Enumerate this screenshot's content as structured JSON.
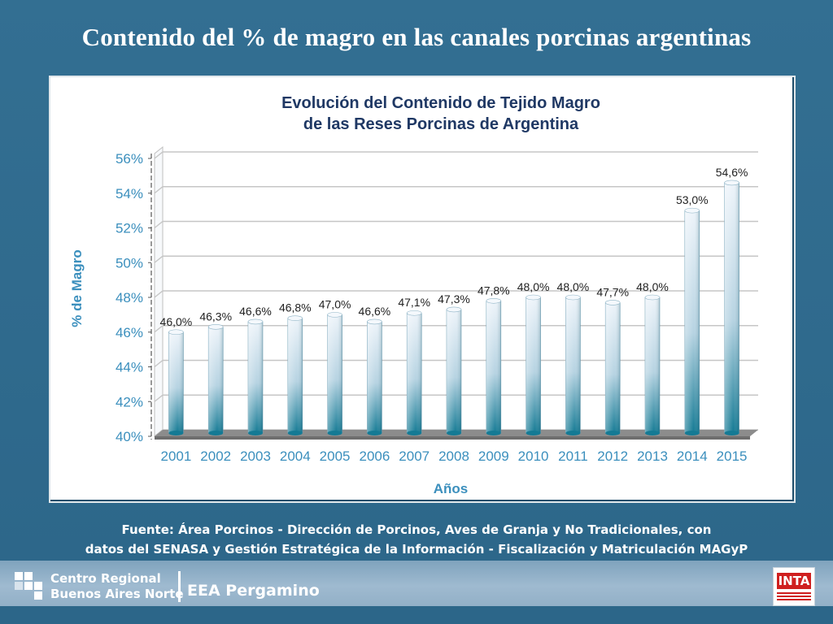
{
  "slide": {
    "title": "Contenido del % de magro en las canales porcinas argentinas",
    "source_line1": "Fuente: Área Porcinos - Dirección de Porcinos, Aves de Granja y No Tradicionales, con",
    "source_line2": "datos del SENASA y Gestión Estratégica de la Información - Fiscalización y Matriculación MAGyP"
  },
  "footer": {
    "centro_line1": "Centro Regional",
    "centro_line2": "Buenos Aires Norte",
    "eea": "EEA Pergamino",
    "inta": "INTA"
  },
  "colors": {
    "background": "#2f6b8f",
    "title_text": "#1f3864",
    "axis_text": "#3b8fbd",
    "bar_top": "#eef4fa",
    "bar_bottom": "#147a94"
  },
  "chart_data": {
    "type": "bar",
    "title_line1": "Evolución del Contenido de Tejido Magro",
    "title_line2": "de las Reses Porcinas de Argentina",
    "xlabel": "Años",
    "ylabel": "% de Magro",
    "ylim": [
      40,
      56
    ],
    "yticks": [
      40,
      42,
      44,
      46,
      48,
      50,
      52,
      54,
      56
    ],
    "ytick_labels": [
      "40%",
      "42%",
      "44%",
      "46%",
      "48%",
      "50%",
      "52%",
      "54%",
      "56%"
    ],
    "categories": [
      "2001",
      "2002",
      "2003",
      "2004",
      "2005",
      "2006",
      "2007",
      "2008",
      "2009",
      "2010",
      "2011",
      "2012",
      "2013",
      "2014",
      "2015"
    ],
    "values": [
      46.0,
      46.3,
      46.6,
      46.8,
      47.0,
      46.6,
      47.1,
      47.3,
      47.8,
      48.0,
      48.0,
      47.7,
      48.0,
      53.0,
      54.6
    ],
    "value_labels": [
      "46,0%",
      "46,3%",
      "46,6%",
      "46,8%",
      "47,0%",
      "46,6%",
      "47,1%",
      "47,3%",
      "47,8%",
      "48,0%",
      "48,0%",
      "47,7%",
      "48,0%",
      "53,0%",
      "54,6%"
    ],
    "grid": true
  }
}
